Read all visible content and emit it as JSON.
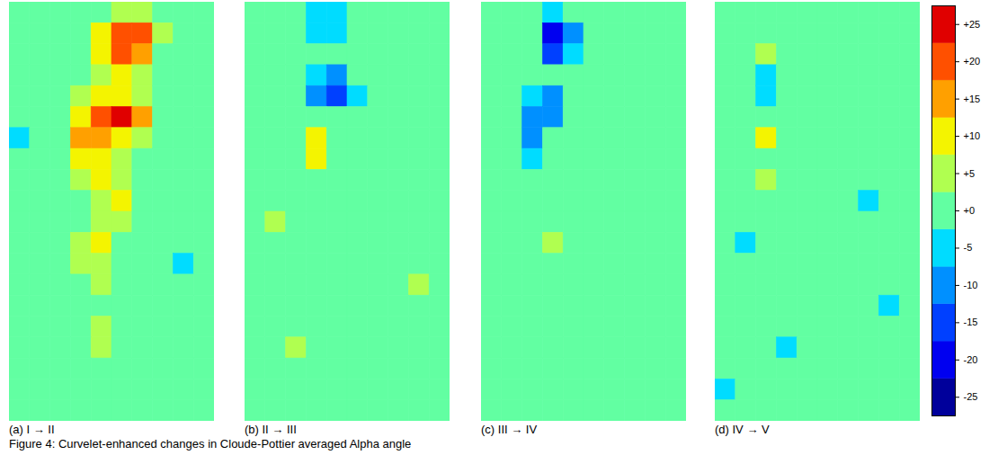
{
  "chart_data": {
    "type": "heatmap",
    "title": "Figure 4: Curvelet-enhanced changes in Cloude-Pottier averaged Alpha angle",
    "tick_labels": false,
    "zlim": [
      -27.5,
      27.5
    ],
    "zticks": [
      {
        "value": 25,
        "label": "+25"
      },
      {
        "value": 20,
        "label": "+20"
      },
      {
        "value": 15,
        "label": "+15"
      },
      {
        "value": 10,
        "label": "+10"
      },
      {
        "value": 5,
        "label": "+5"
      },
      {
        "value": 0,
        "label": "+0"
      },
      -5,
      -10,
      -15,
      -20,
      -25
    ],
    "colors": [
      "#00009b",
      "#0000f0",
      "#0040ff",
      "#0090ff",
      "#00dcff",
      "#62ffa2",
      "#b0ff50",
      "#f4f400",
      "#ffa000",
      "#ff5000",
      "#e00000"
    ],
    "panels": [
      {
        "title": "(a) I → II",
        "cells": [
          [
            0,
            0,
            0,
            0,
            0,
            5,
            5,
            0,
            0,
            0
          ],
          [
            0,
            0,
            0,
            0,
            10,
            20,
            20,
            5,
            0,
            0
          ],
          [
            0,
            0,
            0,
            0,
            10,
            20,
            15,
            0,
            0,
            0
          ],
          [
            0,
            0,
            0,
            0,
            5,
            10,
            5,
            0,
            0,
            0
          ],
          [
            0,
            0,
            0,
            5,
            10,
            10,
            5,
            0,
            0,
            0
          ],
          [
            0,
            0,
            0,
            10,
            20,
            25,
            15,
            0,
            0,
            0
          ],
          [
            -5,
            0,
            0,
            15,
            15,
            10,
            5,
            0,
            0,
            0
          ],
          [
            0,
            0,
            0,
            10,
            10,
            5,
            0,
            0,
            0,
            0
          ],
          [
            0,
            0,
            0,
            5,
            10,
            5,
            0,
            0,
            0,
            0
          ],
          [
            0,
            0,
            0,
            0,
            5,
            10,
            0,
            0,
            0,
            0
          ],
          [
            0,
            0,
            0,
            0,
            5,
            5,
            0,
            0,
            0,
            0
          ],
          [
            0,
            0,
            0,
            5,
            10,
            0,
            0,
            0,
            0,
            0
          ],
          [
            0,
            0,
            0,
            5,
            5,
            0,
            0,
            0,
            -5,
            0
          ],
          [
            0,
            0,
            0,
            0,
            5,
            0,
            0,
            0,
            0,
            0
          ],
          [
            0,
            0,
            0,
            0,
            0,
            0,
            0,
            0,
            0,
            0
          ],
          [
            0,
            0,
            0,
            0,
            5,
            0,
            0,
            0,
            0,
            0
          ],
          [
            0,
            0,
            0,
            0,
            5,
            0,
            0,
            0,
            0,
            0
          ],
          [
            0,
            0,
            0,
            0,
            0,
            0,
            0,
            0,
            0,
            0
          ],
          [
            0,
            0,
            0,
            0,
            0,
            0,
            0,
            0,
            0,
            0
          ],
          [
            0,
            0,
            0,
            0,
            0,
            0,
            0,
            0,
            0,
            0
          ]
        ]
      },
      {
        "title": "(b) II → III",
        "cells": [
          [
            0,
            0,
            0,
            -5,
            -5,
            0,
            0,
            0,
            0,
            0
          ],
          [
            0,
            0,
            0,
            -5,
            -5,
            0,
            0,
            0,
            0,
            0
          ],
          [
            0,
            0,
            0,
            0,
            0,
            0,
            0,
            0,
            0,
            0
          ],
          [
            0,
            0,
            0,
            -5,
            -10,
            0,
            0,
            0,
            0,
            0
          ],
          [
            0,
            0,
            0,
            -10,
            -15,
            -5,
            0,
            0,
            0,
            0
          ],
          [
            0,
            0,
            0,
            0,
            0,
            0,
            0,
            0,
            0,
            0
          ],
          [
            0,
            0,
            0,
            10,
            0,
            0,
            0,
            0,
            0,
            0
          ],
          [
            0,
            0,
            0,
            10,
            0,
            0,
            0,
            0,
            0,
            0
          ],
          [
            0,
            0,
            0,
            0,
            0,
            0,
            0,
            0,
            0,
            0
          ],
          [
            0,
            0,
            0,
            0,
            0,
            0,
            0,
            0,
            0,
            0
          ],
          [
            0,
            5,
            0,
            0,
            0,
            0,
            0,
            0,
            0,
            0
          ],
          [
            0,
            0,
            0,
            0,
            0,
            0,
            0,
            0,
            0,
            0
          ],
          [
            0,
            0,
            0,
            0,
            0,
            0,
            0,
            0,
            0,
            0
          ],
          [
            0,
            0,
            0,
            0,
            0,
            0,
            0,
            0,
            5,
            0
          ],
          [
            0,
            0,
            0,
            0,
            0,
            0,
            0,
            0,
            0,
            0
          ],
          [
            0,
            0,
            0,
            0,
            0,
            0,
            0,
            0,
            0,
            0
          ],
          [
            0,
            0,
            5,
            0,
            0,
            0,
            0,
            0,
            0,
            0
          ],
          [
            0,
            0,
            0,
            0,
            0,
            0,
            0,
            0,
            0,
            0
          ],
          [
            0,
            0,
            0,
            0,
            0,
            0,
            0,
            0,
            0,
            0
          ],
          [
            0,
            0,
            0,
            0,
            0,
            0,
            0,
            0,
            0,
            0
          ]
        ]
      },
      {
        "title": "(c) III → IV",
        "cells": [
          [
            0,
            0,
            0,
            -5,
            0,
            0,
            0,
            0,
            0,
            0
          ],
          [
            0,
            0,
            0,
            -20,
            -10,
            0,
            0,
            0,
            0,
            0
          ],
          [
            0,
            0,
            0,
            -15,
            -5,
            0,
            0,
            0,
            0,
            0
          ],
          [
            0,
            0,
            0,
            0,
            0,
            0,
            0,
            0,
            0,
            0
          ],
          [
            0,
            0,
            -5,
            -10,
            0,
            0,
            0,
            0,
            0,
            0
          ],
          [
            0,
            0,
            -10,
            -10,
            0,
            0,
            0,
            0,
            0,
            0
          ],
          [
            0,
            0,
            -10,
            0,
            0,
            0,
            0,
            0,
            0,
            0
          ],
          [
            0,
            0,
            -5,
            0,
            0,
            0,
            0,
            0,
            0,
            0
          ],
          [
            0,
            0,
            0,
            0,
            0,
            0,
            0,
            0,
            0,
            0
          ],
          [
            0,
            0,
            0,
            0,
            0,
            0,
            0,
            0,
            0,
            0
          ],
          [
            0,
            0,
            0,
            0,
            0,
            0,
            0,
            0,
            0,
            0
          ],
          [
            0,
            0,
            0,
            5,
            0,
            0,
            0,
            0,
            0,
            0
          ],
          [
            0,
            0,
            0,
            0,
            0,
            0,
            0,
            0,
            0,
            0
          ],
          [
            0,
            0,
            0,
            0,
            0,
            0,
            0,
            0,
            0,
            0
          ],
          [
            0,
            0,
            0,
            0,
            0,
            0,
            0,
            0,
            0,
            0
          ],
          [
            0,
            0,
            0,
            0,
            0,
            0,
            0,
            0,
            0,
            0
          ],
          [
            0,
            0,
            0,
            0,
            0,
            0,
            0,
            0,
            0,
            0
          ],
          [
            0,
            0,
            0,
            0,
            0,
            0,
            0,
            0,
            0,
            0
          ],
          [
            0,
            0,
            0,
            0,
            0,
            0,
            0,
            0,
            0,
            0
          ],
          [
            0,
            0,
            0,
            0,
            0,
            0,
            0,
            0,
            0,
            0
          ]
        ]
      },
      {
        "title": "(d) IV → V",
        "cells": [
          [
            0,
            0,
            0,
            0,
            0,
            0,
            0,
            0,
            0,
            0
          ],
          [
            0,
            0,
            0,
            0,
            0,
            0,
            0,
            0,
            0,
            0
          ],
          [
            0,
            0,
            5,
            0,
            0,
            0,
            0,
            0,
            0,
            0
          ],
          [
            0,
            0,
            -5,
            0,
            0,
            0,
            0,
            0,
            0,
            0
          ],
          [
            0,
            0,
            -5,
            0,
            0,
            0,
            0,
            0,
            0,
            0
          ],
          [
            0,
            0,
            0,
            0,
            0,
            0,
            0,
            0,
            0,
            0
          ],
          [
            0,
            0,
            10,
            0,
            0,
            0,
            0,
            0,
            0,
            0
          ],
          [
            0,
            0,
            0,
            0,
            0,
            0,
            0,
            0,
            0,
            0
          ],
          [
            0,
            0,
            5,
            0,
            0,
            0,
            0,
            0,
            0,
            0
          ],
          [
            0,
            0,
            0,
            0,
            0,
            0,
            0,
            -5,
            0,
            0
          ],
          [
            0,
            0,
            0,
            0,
            0,
            0,
            0,
            0,
            0,
            0
          ],
          [
            0,
            -5,
            0,
            0,
            0,
            0,
            0,
            0,
            0,
            0
          ],
          [
            0,
            0,
            0,
            0,
            0,
            0,
            0,
            0,
            0,
            0
          ],
          [
            0,
            0,
            0,
            0,
            0,
            0,
            0,
            0,
            0,
            0
          ],
          [
            0,
            0,
            0,
            0,
            0,
            0,
            0,
            0,
            -5,
            0
          ],
          [
            0,
            0,
            0,
            0,
            0,
            0,
            0,
            0,
            0,
            0
          ],
          [
            0,
            0,
            0,
            -5,
            0,
            0,
            0,
            0,
            0,
            0
          ],
          [
            0,
            0,
            0,
            0,
            0,
            0,
            0,
            0,
            0,
            0
          ],
          [
            -5,
            0,
            0,
            0,
            0,
            0,
            0,
            0,
            0,
            0
          ],
          [
            0,
            0,
            0,
            0,
            0,
            0,
            0,
            0,
            0,
            0
          ]
        ]
      }
    ]
  }
}
